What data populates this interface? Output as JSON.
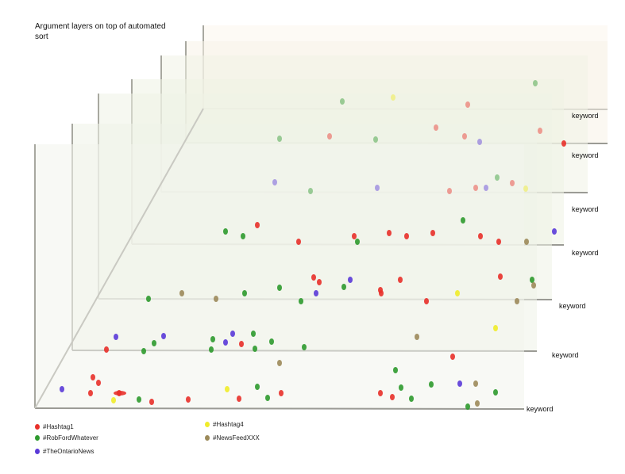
{
  "title": "Argument layers on top of automated sort",
  "chart_data": {
    "type": "scatter",
    "title": "Argument layers on top of automated sort",
    "layer_axis_label": "keyword",
    "layers": [
      "keyword",
      "keyword",
      "keyword",
      "keyword",
      "keyword",
      "keyword",
      "keyword"
    ],
    "legend": [
      {
        "name": "#Hashtag1",
        "color": "#e8302a"
      },
      {
        "name": "#RobFordWhatever",
        "color": "#2e9a2e"
      },
      {
        "name": "#TheOntarioNews",
        "color": "#5a3ad8"
      },
      {
        "name": "#Hashtag4",
        "color": "#f0ec2a"
      },
      {
        "name": "#NewsFeedXXX",
        "color": "#9c8a5a"
      }
    ]
  }
}
